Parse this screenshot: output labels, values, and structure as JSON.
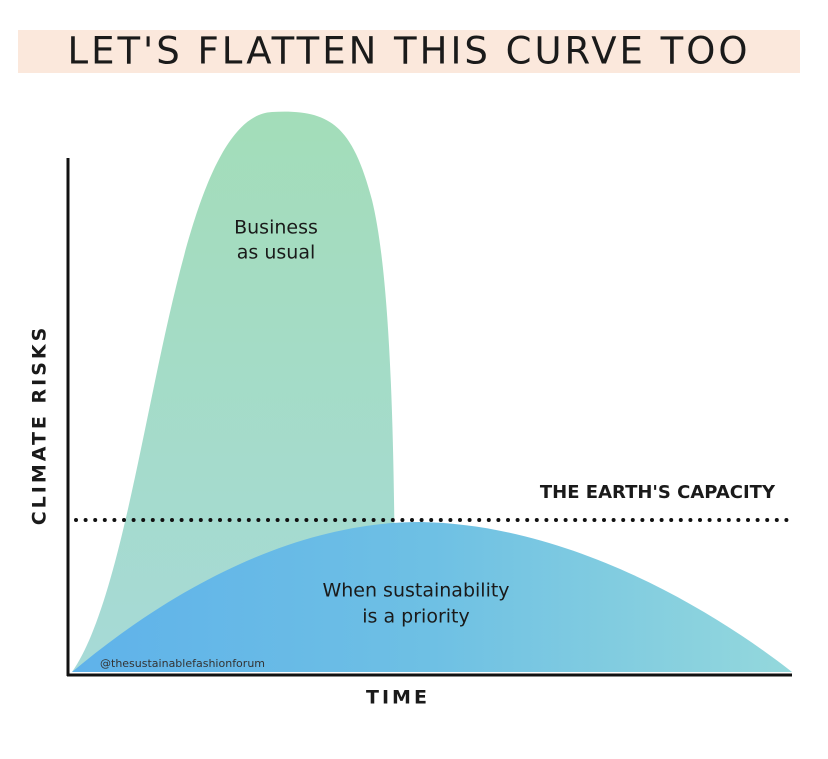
{
  "title": "LET'S FLATTEN THIS CURVE TOO",
  "y_axis_label": "CLIMATE RISKS",
  "x_axis_label": "TIME",
  "capacity_label": "THE EARTH'S CAPACITY",
  "business_label": [
    "Business",
    "as usual"
  ],
  "sustainable_label": [
    "When sustainability",
    "is a priority"
  ],
  "watermark": "@thesustainablefashionforum"
}
